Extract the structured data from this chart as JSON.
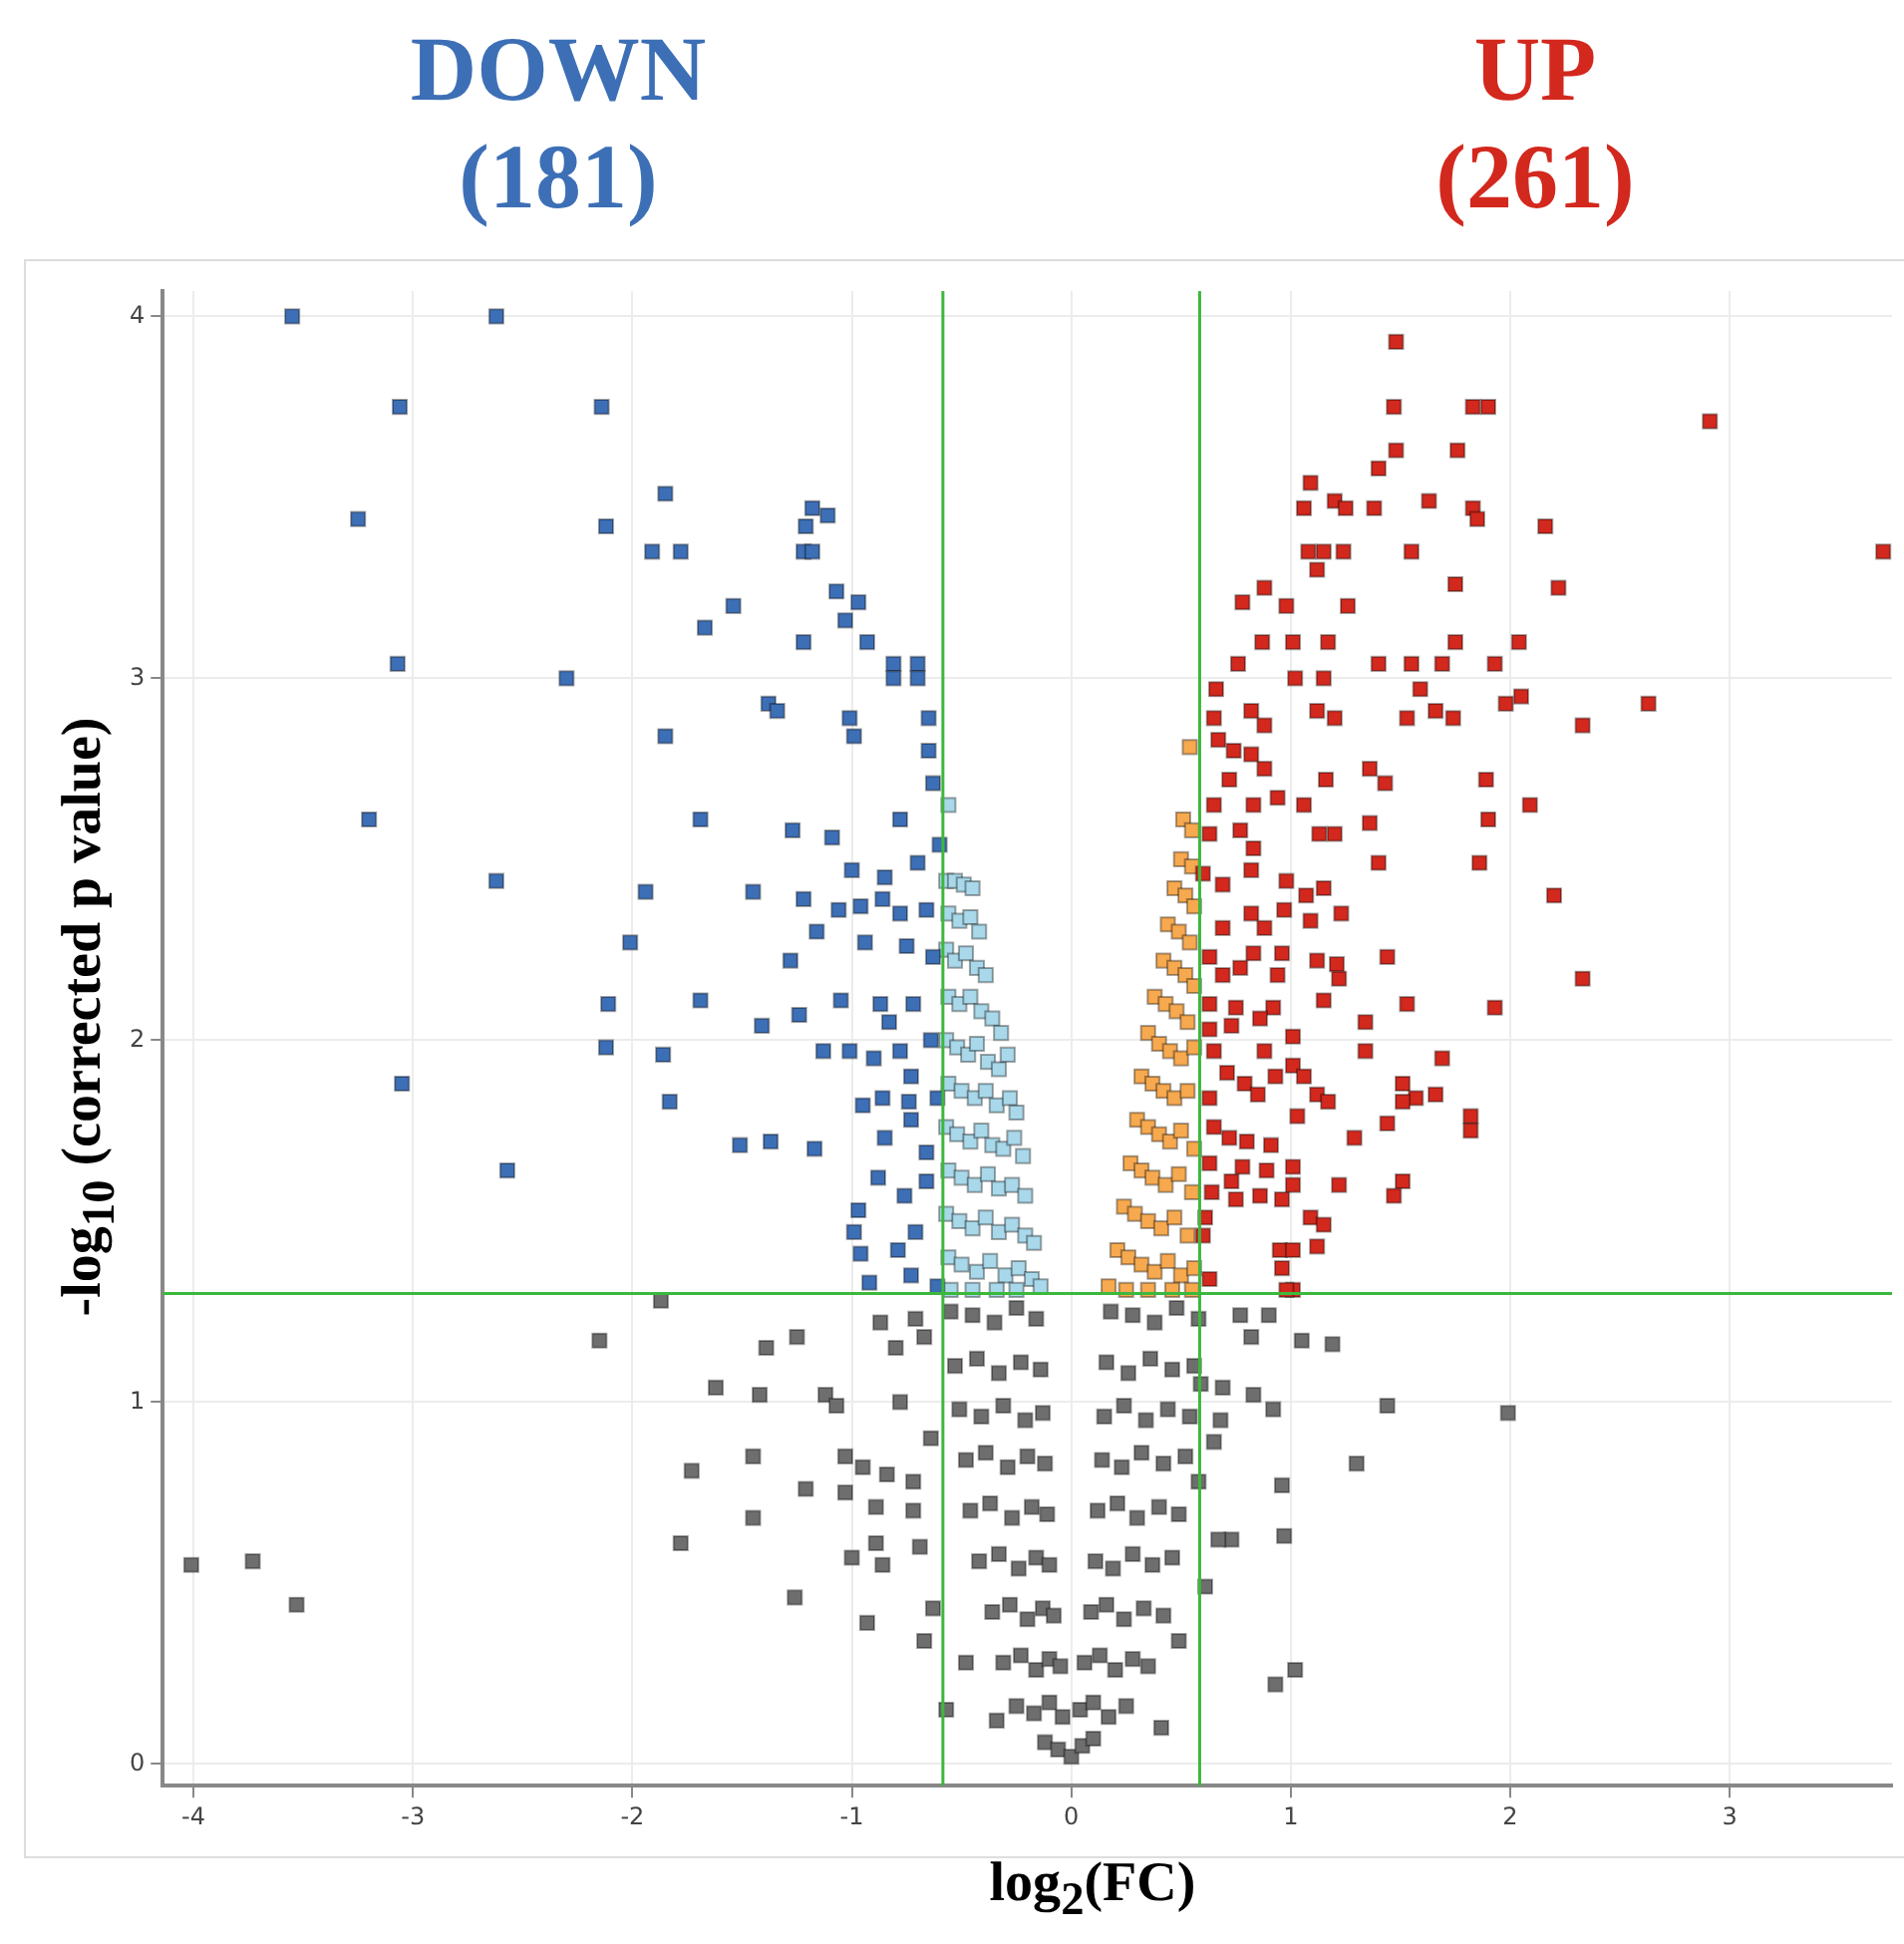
{
  "chart_data": {
    "type": "scatter",
    "xlabel": "log$_{2}$(FC)",
    "ylabel": "-log$_{10}$ (corrected p value)",
    "annotations": [
      "DOWN (181)",
      "UP (261)"
    ],
    "xlim": [
      -4.14,
      3.74
    ],
    "ylim": [
      -0.06,
      4.07
    ],
    "xticks": [
      -4,
      -3,
      -2,
      -1,
      0,
      1,
      2,
      3
    ],
    "yticks": [
      0,
      1,
      2,
      3,
      4
    ],
    "grid": true,
    "legend": false,
    "marker": "square",
    "ref_lines": [
      {
        "axis": "x",
        "value": -0.585,
        "color": "#3cb83c"
      },
      {
        "axis": "x",
        "value": 0.585,
        "color": "#3cb83c"
      },
      {
        "axis": "y",
        "value": 1.3,
        "color": "#3cb83c"
      }
    ],
    "series": [
      {
        "color": "#3d6fb6",
        "x": [
          -3.55,
          -2.62,
          -3.06,
          -2.14,
          -3.25,
          -1.85,
          -2.12,
          -1.91,
          -1.78,
          -1.18,
          -1.11,
          -1.21,
          -1.22,
          -1.18,
          -1.07,
          -0.97,
          -1.54,
          -1.67,
          -1.22,
          -1.03,
          -0.93,
          -0.81,
          -0.7,
          -0.81,
          -0.7,
          -3.07,
          -2.3,
          -1.38,
          -1.34,
          -1.01,
          -0.99,
          -1.85,
          -0.65,
          -0.65,
          -0.63,
          -3.2,
          -1.69,
          -0.78,
          -1.27,
          -1.09,
          -0.6,
          -2.62,
          -1.94,
          -1.45,
          -1.0,
          -0.85,
          -0.7,
          -1.22,
          -1.06,
          -0.96,
          -0.86,
          -0.78,
          -0.66,
          -2.01,
          -1.16,
          -0.94,
          -1.28,
          -0.75,
          -0.63,
          -2.11,
          -1.69,
          -1.41,
          -1.24,
          -1.05,
          -0.87,
          -0.83,
          -0.72,
          -2.12,
          -1.86,
          -1.13,
          -1.01,
          -0.9,
          -0.78,
          -0.64,
          -3.05,
          -1.83,
          -0.95,
          -0.86,
          -0.74,
          -0.73,
          -0.61,
          -1.51,
          -1.37,
          -1.17,
          -0.85,
          -0.73,
          -0.66,
          -2.57,
          -0.88,
          -0.76,
          -0.66,
          -0.97,
          -0.99,
          -0.96,
          -0.71,
          -0.79,
          -0.73,
          -0.92,
          -0.61
        ],
        "values": [
          4.0,
          4.0,
          3.75,
          3.75,
          3.44,
          3.51,
          3.42,
          3.35,
          3.35,
          3.47,
          3.45,
          3.42,
          3.35,
          3.35,
          3.24,
          3.21,
          3.2,
          3.14,
          3.1,
          3.16,
          3.1,
          3.04,
          3.04,
          3.0,
          3.0,
          3.04,
          3.0,
          2.93,
          2.91,
          2.89,
          2.84,
          2.84,
          2.89,
          2.8,
          2.71,
          2.61,
          2.61,
          2.61,
          2.58,
          2.56,
          2.54,
          2.44,
          2.41,
          2.41,
          2.47,
          2.45,
          2.49,
          2.39,
          2.36,
          2.37,
          2.39,
          2.35,
          2.36,
          2.27,
          2.3,
          2.27,
          2.22,
          2.26,
          2.23,
          2.1,
          2.11,
          2.04,
          2.07,
          2.11,
          2.1,
          2.05,
          2.1,
          1.98,
          1.96,
          1.97,
          1.97,
          1.95,
          1.97,
          2.0,
          1.88,
          1.83,
          1.82,
          1.84,
          1.83,
          1.9,
          1.84,
          1.71,
          1.72,
          1.7,
          1.73,
          1.78,
          1.69,
          1.64,
          1.62,
          1.57,
          1.61,
          1.53,
          1.47,
          1.41,
          1.47,
          1.42,
          1.35,
          1.33,
          1.32
        ]
      },
      {
        "color": "#d3281d",
        "x": [
          1.48,
          1.47,
          1.83,
          1.9,
          2.91,
          1.48,
          1.76,
          1.4,
          1.09,
          1.06,
          1.2,
          1.25,
          1.38,
          1.63,
          1.83,
          1.85,
          2.16,
          3.7,
          1.08,
          1.15,
          1.24,
          1.12,
          1.55,
          1.75,
          2.22,
          0.88,
          0.78,
          0.98,
          1.26,
          0.87,
          1.01,
          1.17,
          1.4,
          1.55,
          1.69,
          1.75,
          1.93,
          2.04,
          0.76,
          1.02,
          1.15,
          0.66,
          1.59,
          1.98,
          2.05,
          2.63,
          0.65,
          0.82,
          0.88,
          1.12,
          1.2,
          1.53,
          1.66,
          1.74,
          2.33,
          0.67,
          0.74,
          0.82,
          0.72,
          0.88,
          1.16,
          1.36,
          1.43,
          1.89,
          2.09,
          0.65,
          0.83,
          0.94,
          1.06,
          1.9,
          0.63,
          0.77,
          1.13,
          1.2,
          1.36,
          0.83,
          1.4,
          1.86,
          2.2,
          0.6,
          0.82,
          0.69,
          0.98,
          1.07,
          1.15,
          1.23,
          1.09,
          0.97,
          0.82,
          0.88,
          0.69,
          0.63,
          0.83,
          0.96,
          1.12,
          1.21,
          1.44,
          2.33,
          0.69,
          0.77,
          0.94,
          1.22,
          1.15,
          1.53,
          1.93,
          0.63,
          0.75,
          0.92,
          1.34,
          0.63,
          0.73,
          0.86,
          1.01,
          1.34,
          1.69,
          0.65,
          0.88,
          1.01,
          0.71,
          0.93,
          1.06,
          0.79,
          1.51,
          0.85,
          1.12,
          1.17,
          1.57,
          1.66,
          1.51,
          0.63,
          1.03,
          1.82,
          1.82,
          1.44,
          1.29,
          0.65,
          0.72,
          0.8,
          0.91,
          0.63,
          0.78,
          0.89,
          1.01,
          1.01,
          1.22,
          1.51,
          1.47,
          0.64,
          0.73,
          0.75,
          0.86,
          0.96,
          1.09,
          1.15,
          1.12,
          0.61,
          0.6,
          0.95,
          1.01,
          0.96,
          0.63,
          1.01,
          0.98
        ],
        "values": [
          3.93,
          3.75,
          3.75,
          3.75,
          3.71,
          3.63,
          3.63,
          3.58,
          3.54,
          3.47,
          3.49,
          3.47,
          3.47,
          3.49,
          3.47,
          3.44,
          3.42,
          3.35,
          3.35,
          3.35,
          3.35,
          3.3,
          3.35,
          3.26,
          3.25,
          3.25,
          3.21,
          3.2,
          3.2,
          3.1,
          3.1,
          3.1,
          3.04,
          3.04,
          3.04,
          3.1,
          3.04,
          3.1,
          3.04,
          3.0,
          3.0,
          2.97,
          2.97,
          2.93,
          2.95,
          2.93,
          2.89,
          2.91,
          2.87,
          2.91,
          2.89,
          2.89,
          2.91,
          2.89,
          2.87,
          2.83,
          2.8,
          2.79,
          2.72,
          2.75,
          2.72,
          2.75,
          2.71,
          2.72,
          2.65,
          2.65,
          2.65,
          2.67,
          2.65,
          2.61,
          2.57,
          2.58,
          2.57,
          2.57,
          2.6,
          2.53,
          2.49,
          2.49,
          2.4,
          2.46,
          2.47,
          2.43,
          2.44,
          2.4,
          2.42,
          2.35,
          2.33,
          2.36,
          2.35,
          2.31,
          2.31,
          2.23,
          2.24,
          2.24,
          2.22,
          2.21,
          2.23,
          2.17,
          2.18,
          2.2,
          2.18,
          2.17,
          2.11,
          2.1,
          2.09,
          2.1,
          2.09,
          2.09,
          2.05,
          2.03,
          2.04,
          2.06,
          2.01,
          1.97,
          1.95,
          1.97,
          1.97,
          1.93,
          1.91,
          1.9,
          1.9,
          1.88,
          1.88,
          1.85,
          1.85,
          1.83,
          1.84,
          1.85,
          1.83,
          1.84,
          1.79,
          1.79,
          1.75,
          1.77,
          1.73,
          1.76,
          1.73,
          1.72,
          1.71,
          1.66,
          1.65,
          1.64,
          1.65,
          1.6,
          1.6,
          1.61,
          1.57,
          1.58,
          1.61,
          1.56,
          1.57,
          1.56,
          1.51,
          1.49,
          1.43,
          1.51,
          1.46,
          1.42,
          1.42,
          1.37,
          1.34,
          1.31,
          1.31
        ]
      },
      {
        "color": "#a8d8ea",
        "x": [
          -0.56,
          -0.57,
          -0.53,
          -0.49,
          -0.45,
          -0.56,
          -0.51,
          -0.46,
          -0.42,
          -0.57,
          -0.53,
          -0.48,
          -0.43,
          -0.39,
          -0.56,
          -0.51,
          -0.46,
          -0.41,
          -0.36,
          -0.32,
          -0.57,
          -0.52,
          -0.47,
          -0.43,
          -0.38,
          -0.33,
          -0.29,
          -0.56,
          -0.5,
          -0.44,
          -0.39,
          -0.34,
          -0.28,
          -0.25,
          -0.57,
          -0.52,
          -0.46,
          -0.41,
          -0.36,
          -0.31,
          -0.26,
          -0.22,
          -0.56,
          -0.5,
          -0.44,
          -0.38,
          -0.33,
          -0.27,
          -0.21,
          -0.57,
          -0.51,
          -0.45,
          -0.39,
          -0.33,
          -0.27,
          -0.21,
          -0.17,
          -0.56,
          -0.5,
          -0.43,
          -0.37,
          -0.3,
          -0.24,
          -0.18,
          -0.14,
          -0.55,
          -0.45,
          -0.34,
          -0.25
        ],
        "values": [
          2.65,
          2.44,
          2.44,
          2.43,
          2.42,
          2.35,
          2.33,
          2.34,
          2.3,
          2.25,
          2.22,
          2.24,
          2.2,
          2.18,
          2.12,
          2.1,
          2.12,
          2.08,
          2.06,
          2.02,
          2.0,
          1.98,
          1.96,
          1.99,
          1.94,
          1.92,
          1.96,
          1.88,
          1.86,
          1.84,
          1.86,
          1.82,
          1.84,
          1.8,
          1.76,
          1.74,
          1.72,
          1.75,
          1.71,
          1.7,
          1.73,
          1.68,
          1.64,
          1.62,
          1.6,
          1.63,
          1.59,
          1.6,
          1.57,
          1.52,
          1.5,
          1.48,
          1.51,
          1.47,
          1.49,
          1.46,
          1.44,
          1.4,
          1.38,
          1.36,
          1.39,
          1.35,
          1.37,
          1.34,
          1.32,
          1.31,
          1.31,
          1.31,
          1.31
        ]
      },
      {
        "color": "#f7a94f",
        "x": [
          0.54,
          0.51,
          0.55,
          0.5,
          0.55,
          0.47,
          0.52,
          0.56,
          0.44,
          0.49,
          0.54,
          0.42,
          0.47,
          0.52,
          0.56,
          0.38,
          0.43,
          0.48,
          0.53,
          0.35,
          0.4,
          0.45,
          0.5,
          0.56,
          0.32,
          0.37,
          0.42,
          0.47,
          0.53,
          0.3,
          0.35,
          0.4,
          0.45,
          0.5,
          0.56,
          0.27,
          0.32,
          0.37,
          0.43,
          0.49,
          0.55,
          0.24,
          0.29,
          0.35,
          0.41,
          0.47,
          0.53,
          0.21,
          0.26,
          0.32,
          0.38,
          0.44,
          0.5,
          0.56,
          0.17,
          0.25,
          0.35,
          0.46,
          0.55
        ],
        "values": [
          2.81,
          2.61,
          2.58,
          2.5,
          2.48,
          2.42,
          2.4,
          2.37,
          2.32,
          2.3,
          2.27,
          2.22,
          2.2,
          2.18,
          2.15,
          2.12,
          2.1,
          2.08,
          2.05,
          2.02,
          1.99,
          1.97,
          1.95,
          1.98,
          1.9,
          1.88,
          1.86,
          1.84,
          1.86,
          1.78,
          1.76,
          1.74,
          1.72,
          1.75,
          1.7,
          1.66,
          1.64,
          1.62,
          1.6,
          1.63,
          1.58,
          1.54,
          1.52,
          1.5,
          1.48,
          1.51,
          1.46,
          1.42,
          1.4,
          1.38,
          1.36,
          1.39,
          1.35,
          1.37,
          1.32,
          1.31,
          1.31,
          1.31,
          1.31
        ]
      },
      {
        "color": "#6e6e6e",
        "x": [
          -4.01,
          -3.73,
          -3.53,
          -2.15,
          -1.87,
          -1.62,
          -1.73,
          -1.78,
          -1.42,
          -1.45,
          -1.45,
          -1.39,
          -1.25,
          -1.21,
          -1.26,
          -1.12,
          -1.07,
          -1.03,
          -1.03,
          -1.0,
          -0.93,
          -0.95,
          -0.89,
          -0.89,
          -0.86,
          -0.87,
          -0.8,
          -0.78,
          -0.84,
          -0.72,
          -0.72,
          -0.69,
          -0.67,
          -0.71,
          -0.67,
          -0.64,
          -0.63,
          -0.57,
          -0.48,
          -0.34,
          1.05,
          1.19,
          1.44,
          1.99,
          1.3,
          0.96,
          0.97,
          0.92,
          0.83,
          0.9,
          0.77,
          0.82,
          0.69,
          0.68,
          0.73,
          0.67,
          0.61,
          1.02,
          0.93,
          0.49,
          0.41,
          0.58,
          0.65,
          0.59,
          -0.55,
          -0.45,
          -0.35,
          -0.25,
          -0.16,
          0.18,
          0.28,
          0.38,
          0.48,
          0.58,
          -0.53,
          -0.43,
          -0.33,
          -0.23,
          -0.14,
          0.16,
          0.26,
          0.36,
          0.46,
          0.56,
          -0.51,
          -0.41,
          -0.31,
          -0.21,
          -0.13,
          0.15,
          0.24,
          0.34,
          0.44,
          0.54,
          -0.48,
          -0.39,
          -0.29,
          -0.2,
          -0.12,
          0.14,
          0.23,
          0.32,
          0.42,
          0.52,
          -0.46,
          -0.37,
          -0.27,
          -0.18,
          -0.11,
          0.12,
          0.21,
          0.3,
          0.4,
          0.49,
          -0.42,
          -0.33,
          -0.24,
          -0.16,
          -0.1,
          0.11,
          0.19,
          0.28,
          0.37,
          0.46,
          -0.36,
          -0.28,
          -0.2,
          -0.13,
          -0.08,
          0.09,
          0.16,
          0.24,
          0.33,
          0.42,
          -0.31,
          -0.23,
          -0.16,
          -0.1,
          -0.05,
          0.06,
          0.13,
          0.2,
          0.28,
          0.35,
          -0.25,
          -0.17,
          -0.1,
          -0.04,
          0.04,
          0.1,
          0.17,
          0.25,
          -0.12,
          -0.06,
          0.0,
          0.05,
          0.1
        ],
        "values": [
          0.55,
          0.56,
          0.44,
          1.17,
          1.28,
          1.04,
          0.81,
          0.61,
          1.02,
          0.85,
          0.68,
          1.15,
          1.18,
          0.76,
          0.46,
          1.02,
          0.99,
          0.85,
          0.75,
          0.57,
          0.39,
          0.82,
          0.71,
          0.61,
          0.55,
          1.22,
          1.15,
          1.0,
          0.8,
          0.78,
          0.7,
          0.6,
          0.34,
          1.23,
          1.18,
          0.9,
          0.43,
          0.15,
          0.28,
          0.12,
          1.17,
          1.16,
          0.99,
          0.97,
          0.83,
          0.77,
          0.63,
          0.98,
          1.02,
          1.24,
          1.24,
          1.18,
          1.04,
          0.95,
          0.62,
          0.62,
          0.49,
          0.26,
          0.22,
          0.34,
          0.1,
          0.78,
          0.89,
          1.05,
          1.25,
          1.24,
          1.22,
          1.26,
          1.23,
          1.25,
          1.24,
          1.22,
          1.26,
          1.23,
          1.1,
          1.12,
          1.08,
          1.11,
          1.09,
          1.11,
          1.08,
          1.12,
          1.09,
          1.1,
          0.98,
          0.96,
          0.99,
          0.95,
          0.97,
          0.96,
          0.99,
          0.95,
          0.98,
          0.96,
          0.84,
          0.86,
          0.82,
          0.85,
          0.83,
          0.84,
          0.82,
          0.86,
          0.83,
          0.85,
          0.7,
          0.72,
          0.68,
          0.71,
          0.69,
          0.7,
          0.72,
          0.68,
          0.71,
          0.69,
          0.56,
          0.58,
          0.54,
          0.57,
          0.55,
          0.56,
          0.54,
          0.58,
          0.55,
          0.57,
          0.42,
          0.44,
          0.4,
          0.43,
          0.41,
          0.42,
          0.44,
          0.4,
          0.43,
          0.41,
          0.28,
          0.3,
          0.26,
          0.29,
          0.27,
          0.28,
          0.3,
          0.26,
          0.29,
          0.27,
          0.16,
          0.14,
          0.17,
          0.13,
          0.15,
          0.17,
          0.13,
          0.16,
          0.06,
          0.04,
          0.02,
          0.05,
          0.07
        ]
      }
    ]
  }
}
